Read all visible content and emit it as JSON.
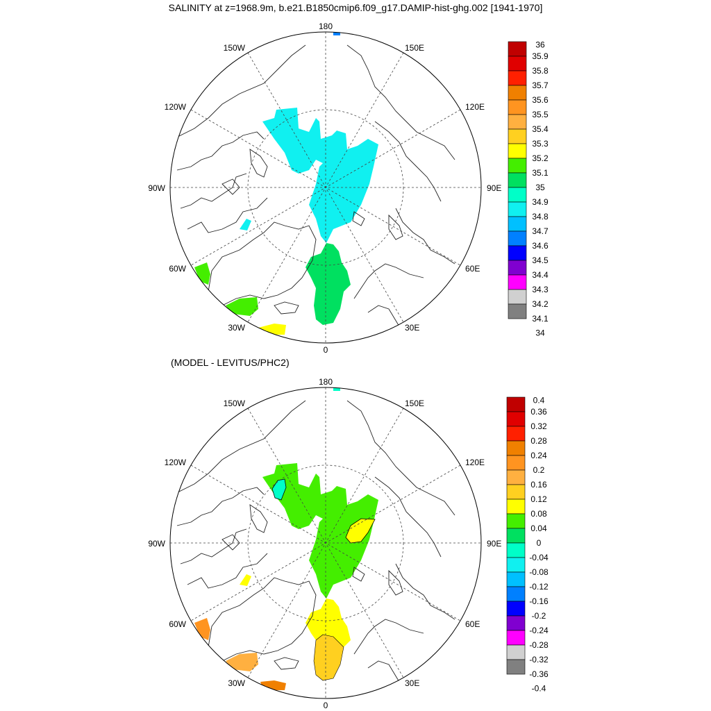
{
  "title": "SALINITY at z=1968.9m, b.e21.B1850cmip6.f09_g17.DAMIP-hist-ghg.002 [1941-1970]",
  "subtitle": "(MODEL - LEVITUS/PHC2)",
  "longitude_labels": {
    "top": "180",
    "bottom": "0",
    "left": "90W",
    "right": "90E",
    "upper_left": "150W",
    "upper_right": "150E",
    "mid_upper_left": "120W",
    "mid_upper_right": "120E",
    "lower_left": "60W",
    "lower_right": "60E",
    "bottom_left": "30W",
    "bottom_right": "30E"
  },
  "salinity_colorbar": {
    "labels": [
      "36",
      "35.9",
      "35.8",
      "35.7",
      "35.6",
      "35.5",
      "35.4",
      "35.3",
      "35.2",
      "35.1",
      "35",
      "34.9",
      "34.8",
      "34.7",
      "34.6",
      "34.5",
      "34.4",
      "34.3",
      "34.2",
      "34.1",
      "34"
    ],
    "colors": [
      "#c00000",
      "#e00000",
      "#ff2000",
      "#f08000",
      "#ff9420",
      "#ffb040",
      "#ffd020",
      "#ffff00",
      "#44ee00",
      "#00e060",
      "#00ffc8",
      "#10f0f0",
      "#00c0ff",
      "#0080ff",
      "#0000ff",
      "#8000d0",
      "#ff00ff",
      "#d0d0d0",
      "#808080"
    ]
  },
  "anomaly_colorbar": {
    "labels": [
      "0.4",
      "0.36",
      "0.32",
      "0.28",
      "0.24",
      "0.2",
      "0.16",
      "0.12",
      "0.08",
      "0.04",
      "0",
      "-0.04",
      "-0.08",
      "-0.12",
      "-0.16",
      "-0.2",
      "-0.24",
      "-0.28",
      "-0.32",
      "-0.36",
      "-0.4"
    ],
    "colors": [
      "#c00000",
      "#e00000",
      "#ff2000",
      "#f08000",
      "#ff9420",
      "#ffb040",
      "#ffd020",
      "#ffff00",
      "#44ee00",
      "#00e060",
      "#00ffc8",
      "#10f0f0",
      "#00c0ff",
      "#0080ff",
      "#0000ff",
      "#8000d0",
      "#ff00ff",
      "#d0d0d0",
      "#808080"
    ]
  },
  "fields": {
    "salinity": {
      "central_arctic": "#10f0f0",
      "eurasian_gateway": "#00e060",
      "west_greenland": "#44ee00",
      "irminger": "#44ee00",
      "iceland_south": "#ffff00",
      "bering": "#0080ff",
      "canada_islands": "#10f0f0"
    },
    "anomaly": {
      "central_arctic": "#44ee00",
      "eurasian_gateway": "#ffff00",
      "eurasian_south": "#ffd020",
      "west_greenland": "#ff9420",
      "irminger": "#ffb040",
      "iceland_south": "#f08000",
      "bering": "#00ffc8",
      "canada_islands": "#ffff00",
      "beaufort_patch": "#00ffc8",
      "laptev_patch": "#ffff00"
    }
  }
}
